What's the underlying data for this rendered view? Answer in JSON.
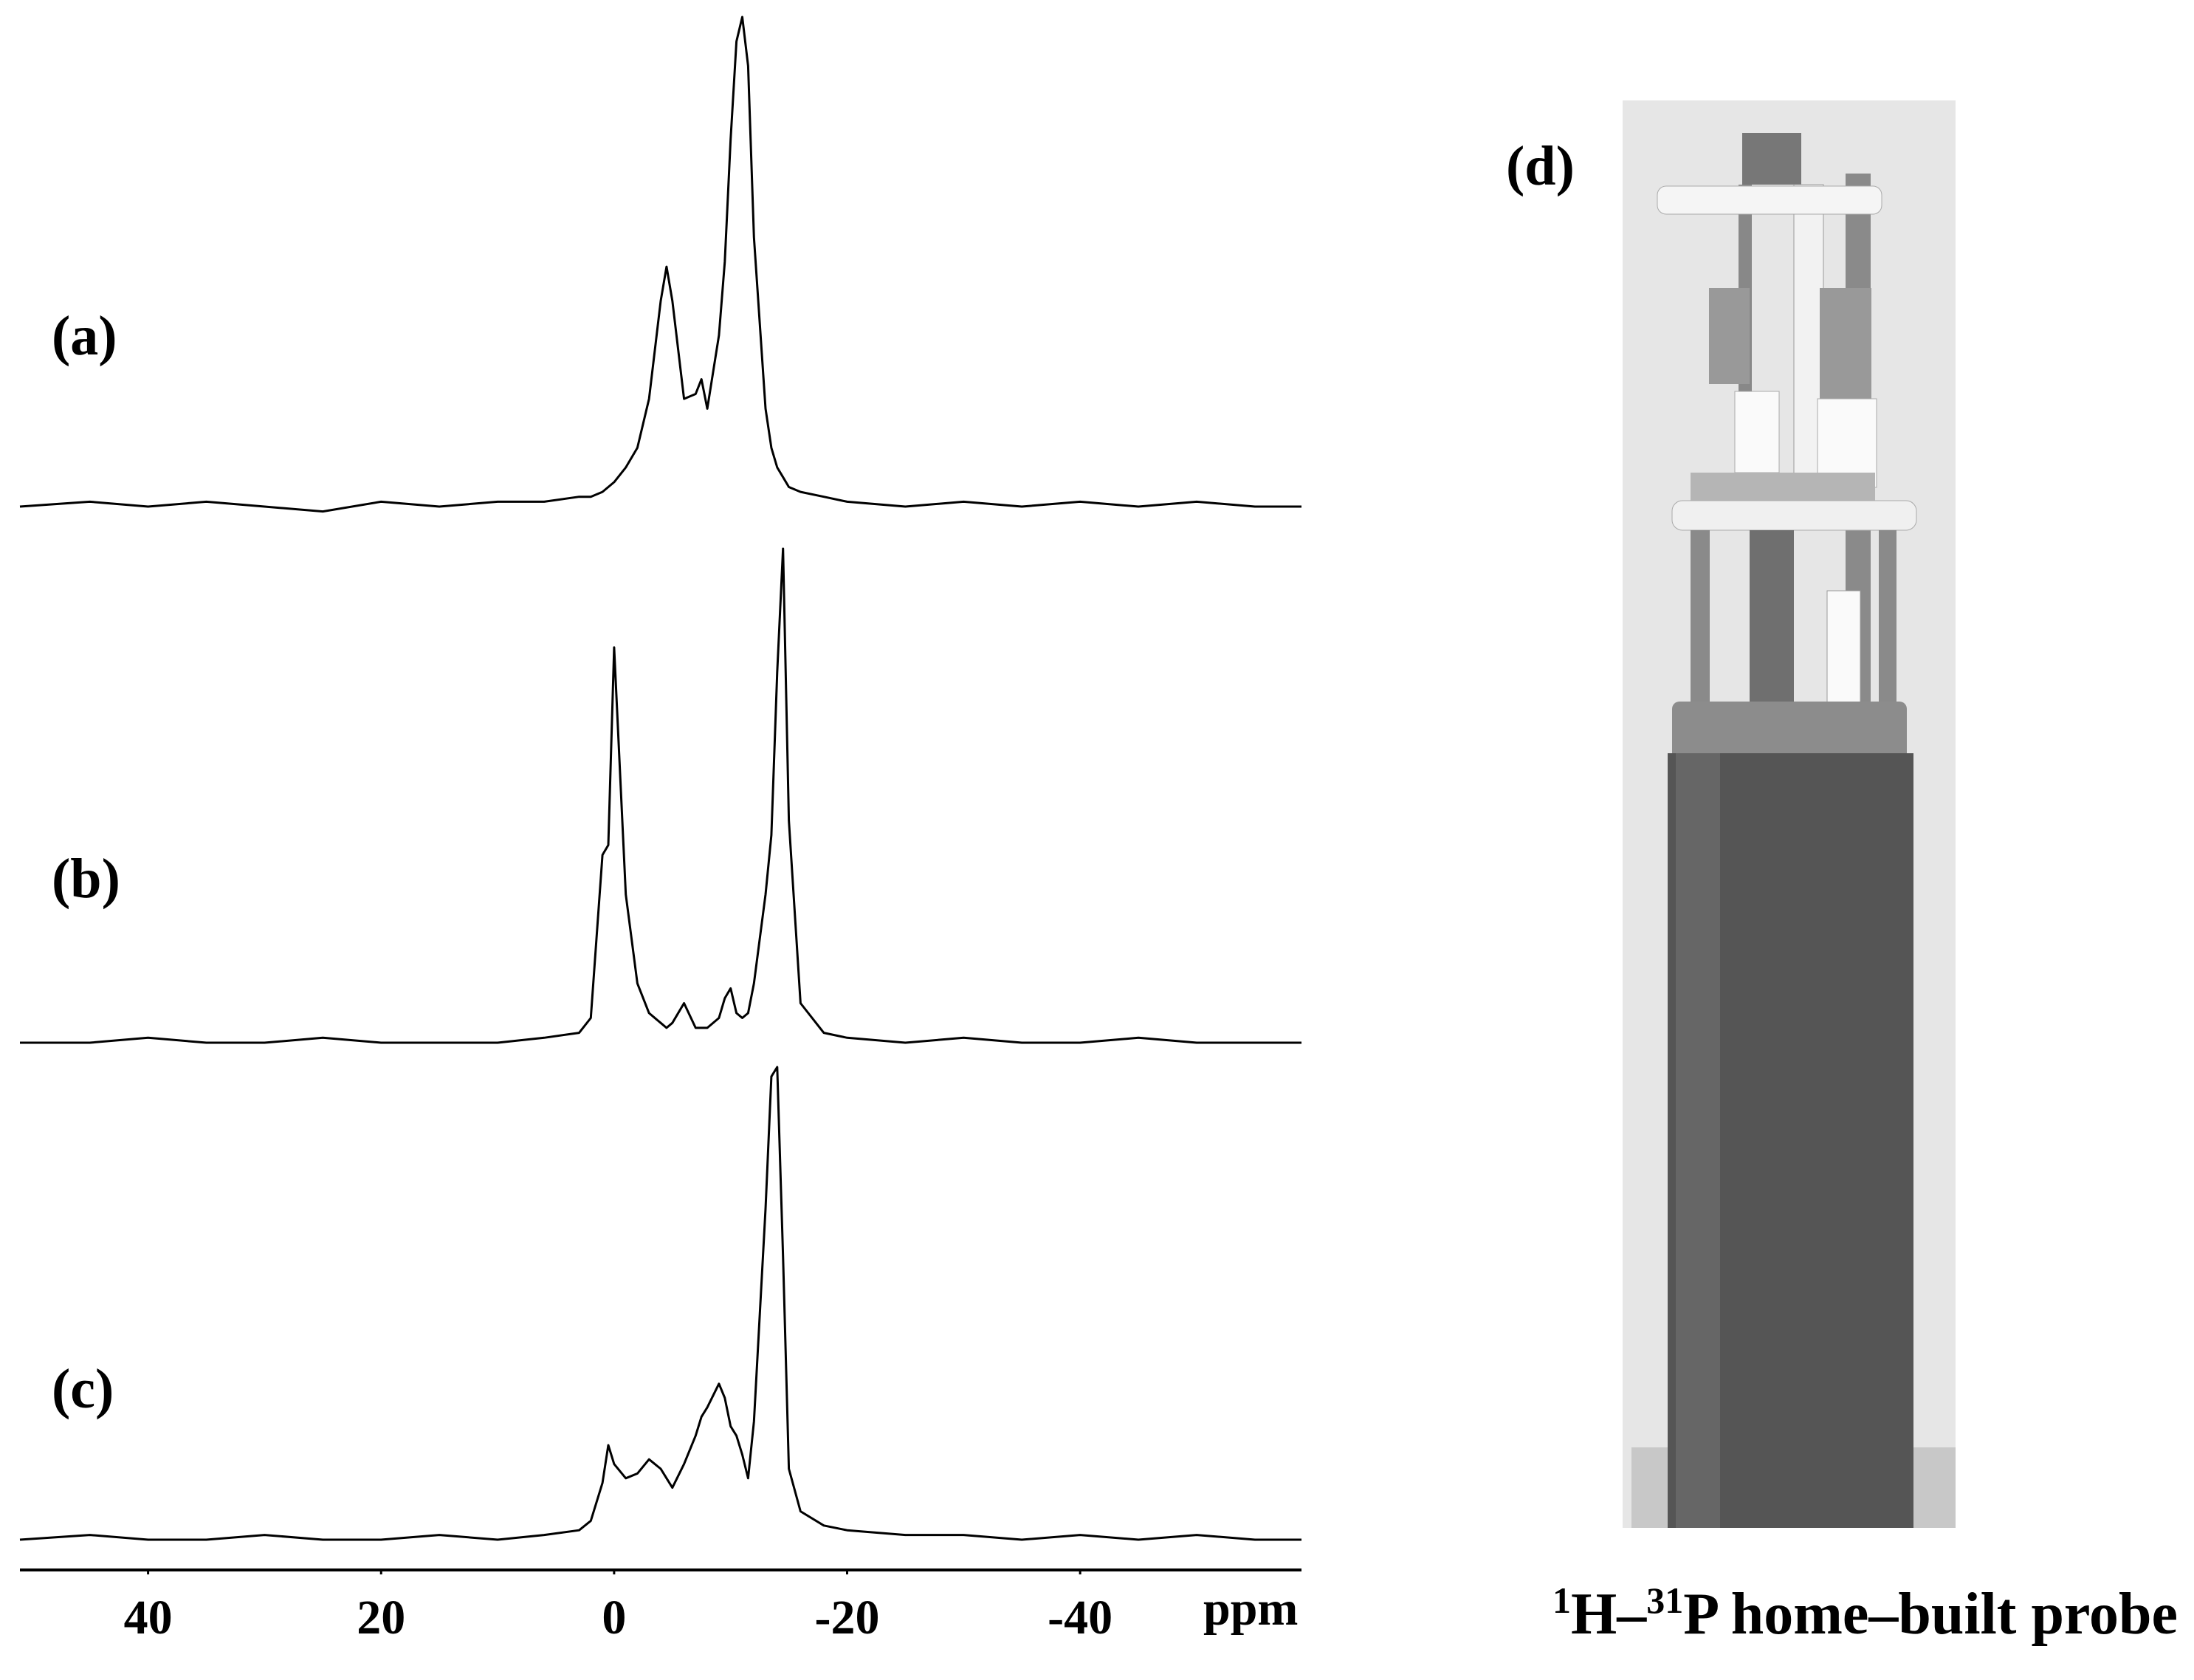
{
  "chart_data": {
    "type": "line",
    "x_label": "ppm",
    "xlim": [
      51,
      -59
    ],
    "xticks": [
      40,
      20,
      0,
      -20,
      -40
    ],
    "x": [
      51,
      45,
      40,
      35,
      30,
      25,
      20,
      15,
      10,
      6,
      3,
      2,
      1,
      0.5,
      0,
      -1,
      -2,
      -3,
      -4,
      -4.5,
      -5,
      -6,
      -7,
      -7.5,
      -8,
      -9,
      -9.5,
      -10,
      -10.5,
      -11,
      -11.5,
      -12,
      -13,
      -13.5,
      -14,
      -14.5,
      -15,
      -16,
      -18,
      -20,
      -25,
      -30,
      -35,
      -40,
      -45,
      -50,
      -55,
      -59
    ],
    "series": [
      {
        "name": "(a)",
        "color": "#000000",
        "values": [
          0,
          1,
          0,
          1,
          0,
          -1,
          1,
          0,
          1,
          1,
          2,
          2,
          3,
          4,
          5,
          8,
          12,
          22,
          42,
          49,
          42,
          22,
          23,
          26,
          20,
          35,
          50,
          75,
          95,
          100,
          90,
          55,
          20,
          12,
          8,
          6,
          4,
          3,
          2,
          1,
          0,
          1,
          0,
          1,
          0,
          1,
          0,
          0
        ]
      },
      {
        "name": "(b)",
        "color": "#000000",
        "values": [
          0,
          0,
          1,
          0,
          0,
          1,
          0,
          0,
          0,
          1,
          2,
          5,
          38,
          40,
          80,
          30,
          12,
          6,
          4,
          3,
          4,
          8,
          3,
          3,
          3,
          5,
          9,
          11,
          6,
          5,
          6,
          12,
          30,
          42,
          75,
          100,
          45,
          8,
          2,
          1,
          0,
          1,
          0,
          0,
          1,
          0,
          0,
          0
        ]
      },
      {
        "name": "(c)",
        "color": "#000000",
        "values": [
          0,
          1,
          0,
          0,
          1,
          0,
          0,
          1,
          0,
          1,
          2,
          4,
          12,
          20,
          16,
          13,
          14,
          17,
          15,
          13,
          11,
          16,
          22,
          26,
          28,
          33,
          30,
          24,
          22,
          18,
          13,
          25,
          70,
          98,
          100,
          60,
          15,
          6,
          3,
          2,
          1,
          1,
          0,
          1,
          0,
          1,
          0,
          0
        ]
      }
    ]
  },
  "photo": {
    "label": "(d)",
    "caption": {
      "mass_h": "1",
      "h": "H–",
      "mass_p": "31",
      "rest": "P home–built probe"
    }
  }
}
